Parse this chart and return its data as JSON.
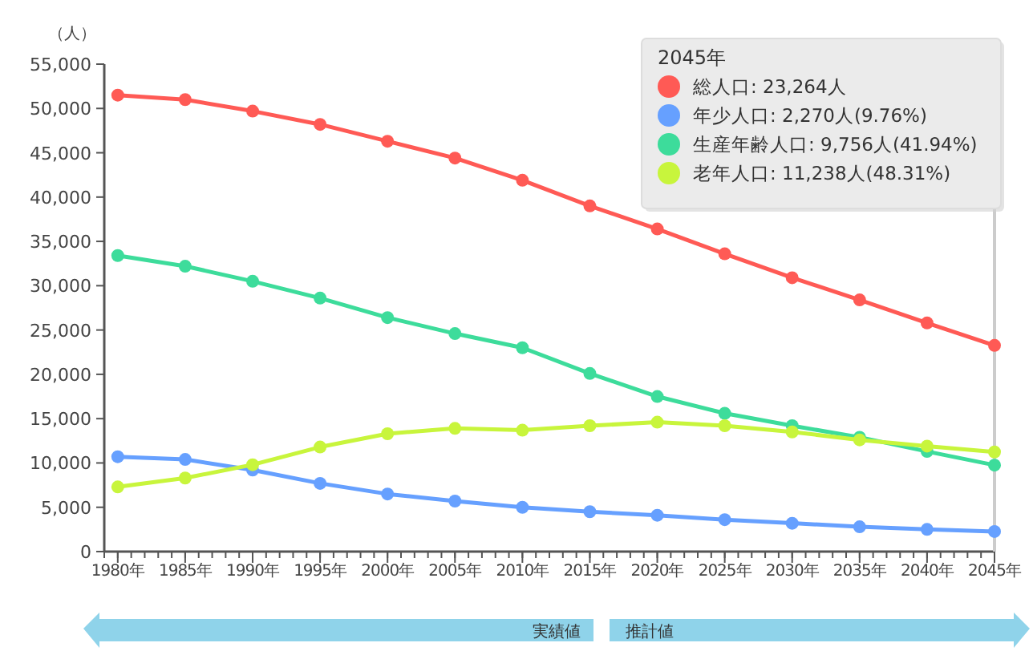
{
  "chart_data": {
    "type": "line",
    "ylabel": "（人）",
    "legend_title": "2045年",
    "legend": "top right",
    "marker": "circle",
    "line_style": "solid",
    "grid": false,
    "x": [
      1980,
      1985,
      1990,
      1995,
      2000,
      2005,
      2010,
      2015,
      2020,
      2025,
      2030,
      2035,
      2040,
      2045
    ],
    "xlim": [
      1979,
      2045
    ],
    "xticks": [
      {
        "value": 1980,
        "label": "1980年"
      },
      {
        "value": 1985,
        "label": "1985年"
      },
      {
        "value": 1990,
        "label": "1990年"
      },
      {
        "value": 1995,
        "label": "1995年"
      },
      {
        "value": 2000,
        "label": "2000年"
      },
      {
        "value": 2005,
        "label": "2005年"
      },
      {
        "value": 2010,
        "label": "2010年"
      },
      {
        "value": 2015,
        "label": "2015年"
      },
      {
        "value": 2020,
        "label": "2020年"
      },
      {
        "value": 2025,
        "label": "2025年"
      },
      {
        "value": 2030,
        "label": "2030年"
      },
      {
        "value": 2035,
        "label": "2035年"
      },
      {
        "value": 2040,
        "label": "2040年"
      },
      {
        "value": 2045,
        "label": "2045年"
      }
    ],
    "ylim": [
      0,
      55000
    ],
    "yticks": [
      {
        "value": 0,
        "label": "0"
      },
      {
        "value": 5000,
        "label": "5,000"
      },
      {
        "value": 10000,
        "label": "10,000"
      },
      {
        "value": 15000,
        "label": "15,000"
      },
      {
        "value": 20000,
        "label": "20,000"
      },
      {
        "value": 25000,
        "label": "25,000"
      },
      {
        "value": 30000,
        "label": "30,000"
      },
      {
        "value": 35000,
        "label": "35,000"
      },
      {
        "value": 40000,
        "label": "40,000"
      },
      {
        "value": 45000,
        "label": "45,000"
      },
      {
        "value": 50000,
        "label": "50,000"
      },
      {
        "value": 55000,
        "label": "55,000"
      }
    ],
    "series": [
      {
        "name": "総人口: 23,264人",
        "color": "#ff5a55",
        "values": [
          51500,
          51000,
          49700,
          48200,
          46300,
          44400,
          41900,
          39000,
          36400,
          33600,
          30900,
          28400,
          25800,
          23264
        ]
      },
      {
        "name": "年少人口: 2,270人(9.76%)",
        "color": "#66a0ff",
        "values": [
          10700,
          10400,
          9200,
          7700,
          6500,
          5700,
          5000,
          4500,
          4100,
          3600,
          3200,
          2800,
          2500,
          2270
        ]
      },
      {
        "name": "生産年齢人口: 9,756人(41.94%)",
        "color": "#3ddc9b",
        "values": [
          33400,
          32200,
          30500,
          28600,
          26400,
          24600,
          23000,
          20100,
          17500,
          15600,
          14200,
          12900,
          11300,
          9756
        ]
      },
      {
        "name": "老年人口: 11,238人(48.31%)",
        "color": "#c8f53c",
        "values": [
          7300,
          8300,
          9800,
          11800,
          13300,
          13900,
          13700,
          14200,
          14600,
          14200,
          13500,
          12600,
          11900,
          11238
        ]
      }
    ],
    "ref_lines": [
      {
        "axis": "x",
        "value": 2045,
        "color": "#cccccc"
      }
    ],
    "annotations": [
      "実績値",
      "推計値"
    ]
  }
}
